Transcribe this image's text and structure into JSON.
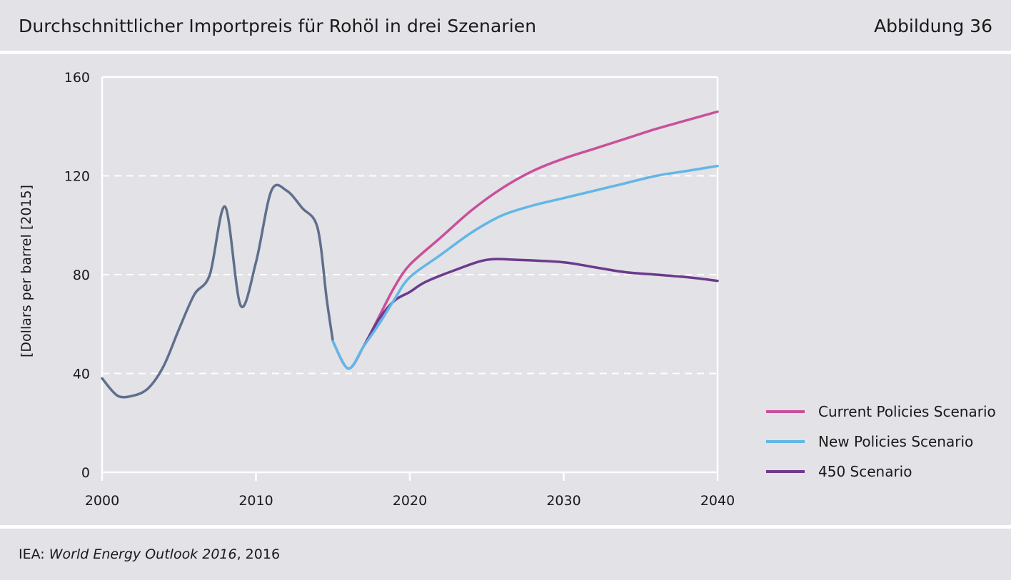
{
  "header": {
    "title": "Durchschnittlicher Importpreis für Rohöl in drei Szenarien",
    "figure_label": "Abbildung 36"
  },
  "footer": {
    "source_prefix": "IEA: ",
    "source_title": "World Energy Outlook 2016",
    "source_suffix": ", 2016"
  },
  "colors": {
    "background": "#e2e2e7",
    "historical": "#5f6f8c",
    "current_policies": "#c9509a",
    "new_policies": "#62b6e6",
    "scenario_450": "#6d3a8c",
    "grid": "#ffffff"
  },
  "chart_data": {
    "type": "line",
    "title": "Durchschnittlicher Importpreis für Rohöl in drei Szenarien",
    "xlabel": "",
    "ylabel": "[Dollars per barrel [2015]",
    "xlim": [
      2000,
      2040
    ],
    "ylim": [
      0,
      160
    ],
    "x_ticks": [
      2000,
      2010,
      2020,
      2030,
      2040
    ],
    "y_ticks": [
      0,
      40,
      80,
      120,
      160
    ],
    "grid": "horizontal dashed",
    "legend_position": "bottom-right",
    "series": [
      {
        "name": "Historical",
        "legend": false,
        "color": "#5f6f8c",
        "points": [
          [
            2000,
            38
          ],
          [
            2001,
            31
          ],
          [
            2002,
            31
          ],
          [
            2003,
            34
          ],
          [
            2004,
            43
          ],
          [
            2005,
            58
          ],
          [
            2006,
            72
          ],
          [
            2007,
            80
          ],
          [
            2008,
            107.5
          ],
          [
            2009,
            67.5
          ],
          [
            2010,
            85
          ],
          [
            2011,
            114
          ],
          [
            2012,
            114
          ],
          [
            2013,
            107
          ],
          [
            2014,
            99
          ],
          [
            2014.6,
            70
          ],
          [
            2015,
            53
          ]
        ]
      },
      {
        "name": "Current Policies Scenario",
        "legend": true,
        "color": "#c9509a",
        "points": [
          [
            2015,
            53
          ],
          [
            2016,
            42
          ],
          [
            2017,
            51
          ],
          [
            2018,
            63
          ],
          [
            2019,
            75
          ],
          [
            2020,
            84
          ],
          [
            2022,
            95
          ],
          [
            2024,
            106
          ],
          [
            2026,
            115
          ],
          [
            2028,
            122
          ],
          [
            2030,
            127
          ],
          [
            2032,
            131
          ],
          [
            2034,
            135
          ],
          [
            2036,
            139
          ],
          [
            2038,
            142.5
          ],
          [
            2040,
            146
          ]
        ]
      },
      {
        "name": "New Policies Scenario",
        "legend": true,
        "color": "#62b6e6",
        "points": [
          [
            2015,
            53
          ],
          [
            2016,
            42
          ],
          [
            2017,
            51
          ],
          [
            2018,
            60
          ],
          [
            2019,
            70
          ],
          [
            2020,
            79
          ],
          [
            2022,
            88
          ],
          [
            2024,
            97
          ],
          [
            2026,
            104
          ],
          [
            2028,
            108
          ],
          [
            2030,
            111
          ],
          [
            2032,
            114
          ],
          [
            2034,
            117
          ],
          [
            2036,
            120
          ],
          [
            2038,
            122
          ],
          [
            2040,
            124
          ]
        ]
      },
      {
        "name": "450 Scenario",
        "legend": true,
        "color": "#6d3a8c",
        "points": [
          [
            2017,
            51
          ],
          [
            2018,
            62
          ],
          [
            2019,
            69.5
          ],
          [
            2020,
            73
          ],
          [
            2021,
            77
          ],
          [
            2023,
            82
          ],
          [
            2025,
            86
          ],
          [
            2027,
            86
          ],
          [
            2030,
            85
          ],
          [
            2032,
            83
          ],
          [
            2034,
            81
          ],
          [
            2036,
            80
          ],
          [
            2038,
            79
          ],
          [
            2040,
            77.5
          ]
        ]
      }
    ]
  }
}
